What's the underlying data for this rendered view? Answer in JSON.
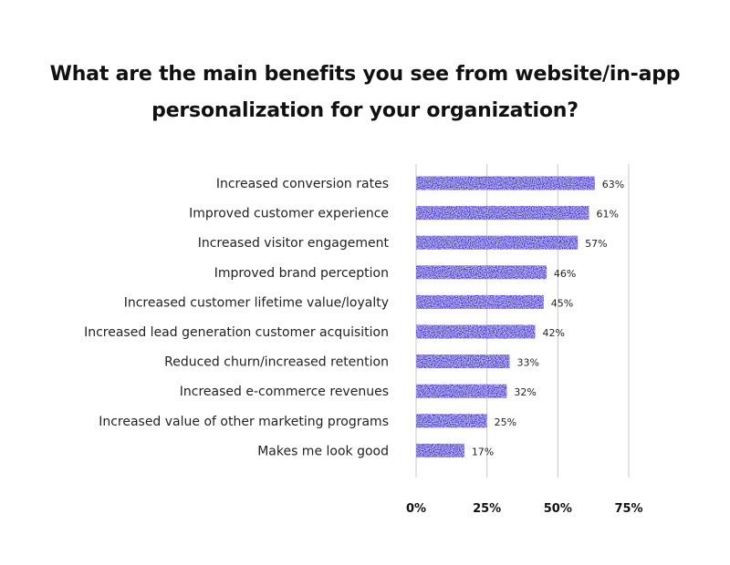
{
  "chart_data": {
    "type": "bar",
    "orientation": "horizontal",
    "title": "What are the main benefits you see from website/in-app personalization for your organization?",
    "title_lines": [
      "What are the main benefits you see from website/in-app",
      "personalization for your organization?"
    ],
    "categories": [
      "Increased conversion rates",
      "Improved customer experience",
      "Increased visitor engagement",
      "Improved brand perception",
      "Increased customer lifetime value/loyalty",
      "Increased lead generation customer acquisition",
      "Reduced churn/increased retention",
      "Increased e-commerce revenues",
      "Increased value of other marketing programs",
      "Makes me look good"
    ],
    "values": [
      63,
      61,
      57,
      46,
      45,
      42,
      33,
      32,
      25,
      17
    ],
    "value_labels": [
      "63%",
      "61%",
      "57%",
      "46%",
      "45%",
      "42%",
      "33%",
      "32%",
      "25%",
      "17%"
    ],
    "xlim": [
      0,
      75
    ],
    "xticks": [
      0,
      25,
      50,
      75
    ],
    "xtick_labels": [
      "0%",
      "25%",
      "50%",
      "75%"
    ],
    "grid": true,
    "legend": "none",
    "bar_color": "#3a1fd8"
  }
}
